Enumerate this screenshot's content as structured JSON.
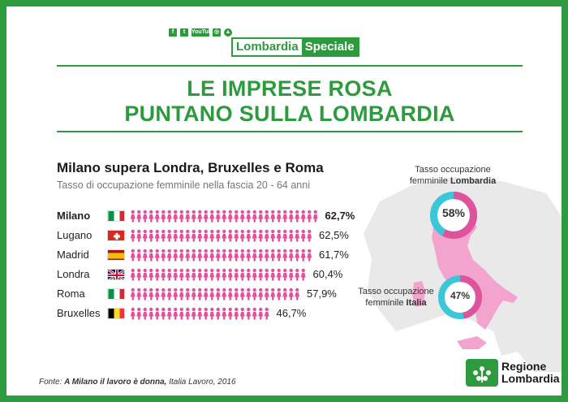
{
  "header": {
    "social": [
      "f",
      "t",
      "YouTube",
      "◎",
      "▲"
    ],
    "logo_part1": "Lombardia",
    "logo_part2": "Speciale"
  },
  "title_line1": "LE IMPRESE ROSA",
  "title_line2": "PUNTANO SULLA LOMBARDIA",
  "chart_data": {
    "type": "bar",
    "title": "Milano supera Londra, Bruxelles e Roma",
    "subtitle": "Tasso di occupazione femminile nella fascia 20 - 64 anni",
    "categories": [
      "Milano",
      "Lugano",
      "Madrid",
      "Londra",
      "Roma",
      "Bruxelles"
    ],
    "values": [
      62.7,
      62.5,
      61.7,
      60.4,
      57.9,
      46.7
    ],
    "value_labels": [
      "62,7%",
      "62,5%",
      "61,7%",
      "60,4%",
      "57,9%",
      "46,7%"
    ],
    "icon_color": "#e0529c",
    "highlight": "Milano"
  },
  "map": {
    "lombardia_label_line1": "Tasso occupazione",
    "lombardia_label_line2": "femminile",
    "lombardia_label_bold": "Lombardia",
    "lombardia_value": 58,
    "lombardia_text": "58%",
    "italia_label_line1": "Tasso occupazione",
    "italia_label_line2": "femminile",
    "italia_label_bold": "Italia",
    "italia_value": 47,
    "italia_text": "47%",
    "donut_fill_color": "#e0529c",
    "donut_rest_color": "#3cc6d8"
  },
  "source": {
    "prefix": "Fonte: ",
    "bold": "A Milano il lavoro è donna,",
    "rest": " Italia Lavoro, 2016"
  },
  "footer_logo": {
    "line1": "Regione",
    "line2": "Lombardia"
  }
}
